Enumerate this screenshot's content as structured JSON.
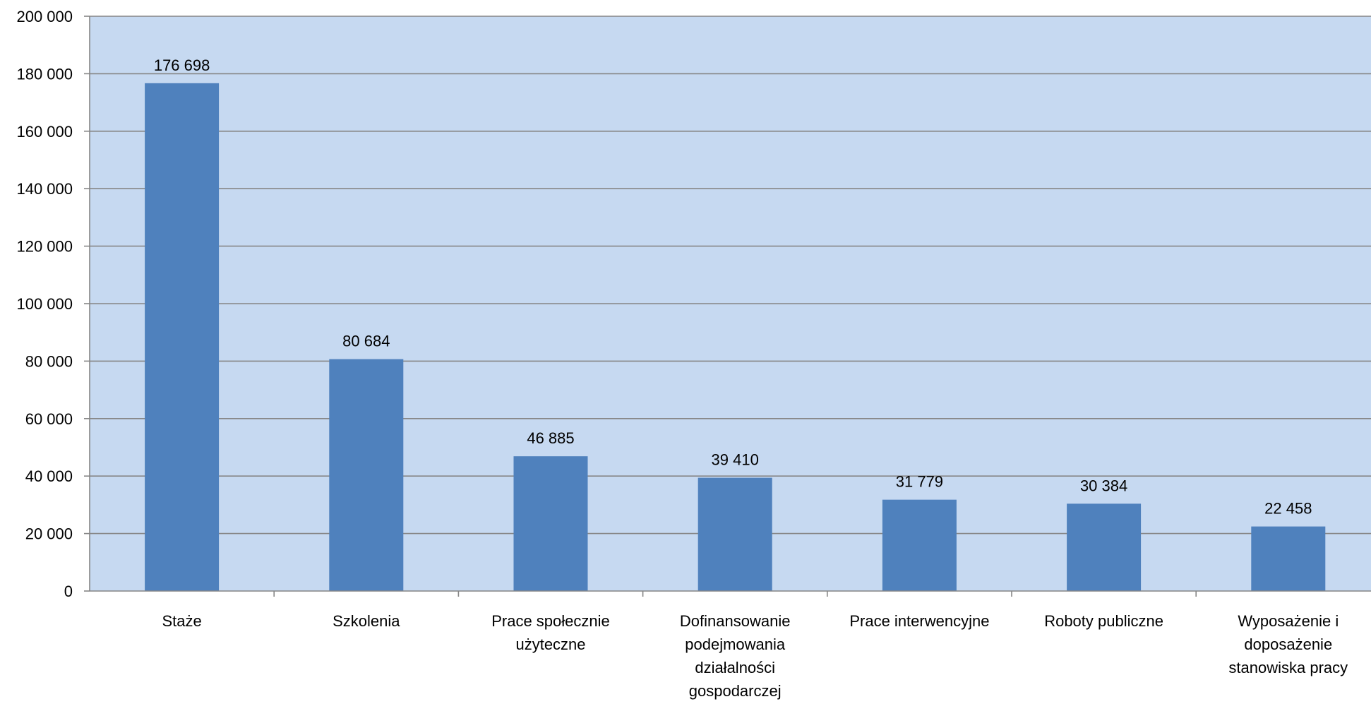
{
  "chart_data": {
    "type": "bar",
    "title": "",
    "xlabel": "",
    "ylabel": "",
    "ylim": [
      0,
      200000
    ],
    "yticks": [
      0,
      20000,
      40000,
      60000,
      80000,
      100000,
      120000,
      140000,
      160000,
      180000,
      200000
    ],
    "ytick_labels": [
      "0",
      "20 000",
      "40 000",
      "60 000",
      "80 000",
      "100 000",
      "120 000",
      "140 000",
      "160 000",
      "180 000",
      "200 000"
    ],
    "categories": [
      [
        "Staże"
      ],
      [
        "Szkolenia"
      ],
      [
        "Prace społecznie",
        "użyteczne"
      ],
      [
        "Dofinansowanie",
        "podejmowania",
        "działalności",
        "gospodarczej"
      ],
      [
        "Prace interwencyjne"
      ],
      [
        "Roboty publiczne"
      ],
      [
        "Wyposażenie i",
        "doposażenie",
        "stanowiska pracy"
      ]
    ],
    "values": [
      176698,
      80684,
      46885,
      39410,
      31779,
      30384,
      22458
    ],
    "value_labels": [
      "176 698",
      "80 684",
      "46 885",
      "39 410",
      "31 779",
      "30 384",
      "22 458"
    ],
    "grid": true,
    "legend": "none",
    "colors": {
      "bar": "#4f81bd",
      "plot_background": "#c6d9f1",
      "gridline": "#868686",
      "axis": "#868686"
    }
  }
}
